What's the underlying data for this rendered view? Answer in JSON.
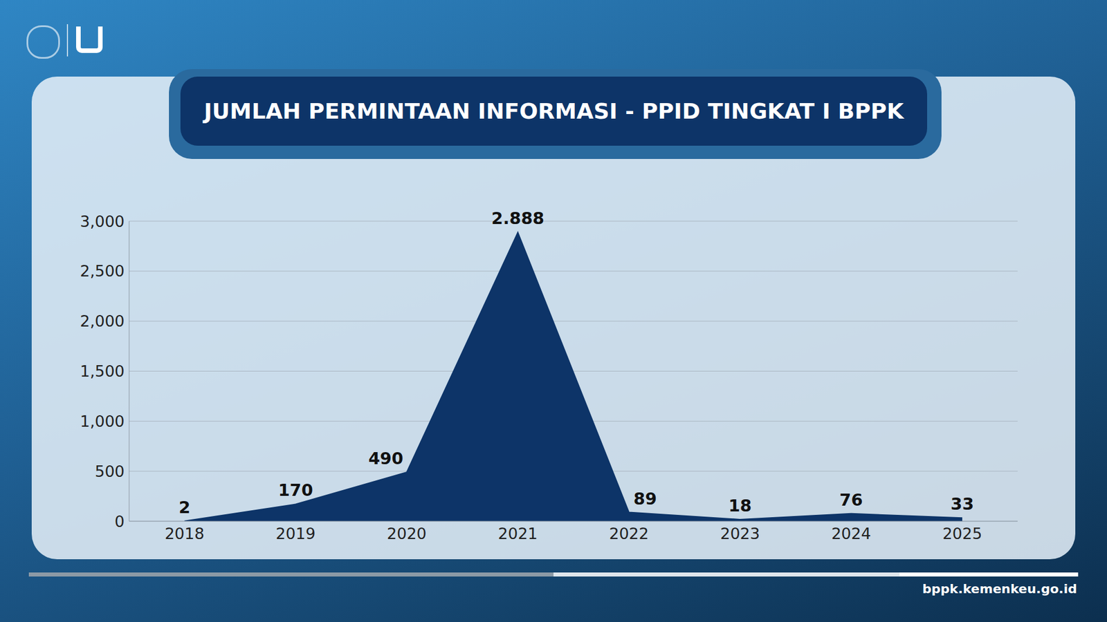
{
  "chart_data": {
    "type": "area",
    "title": "JUMLAH PERMINTAAN INFORMASI - PPID TINGKAT I BPPK",
    "categories": [
      "2018",
      "2019",
      "2020",
      "2021",
      "2022",
      "2023",
      "2024",
      "2025"
    ],
    "values": [
      2,
      170,
      490,
      2888,
      89,
      18,
      76,
      33
    ],
    "value_labels": [
      "2",
      "170",
      "490",
      "2.888",
      "89",
      "18",
      "76",
      "33"
    ],
    "color": "#0d3468",
    "ylim": [
      0,
      3000
    ],
    "yticks": [
      0,
      500,
      {
        "value": 1000,
        "label": "1,000"
      },
      {
        "value": 1500,
        "label": "1,500"
      },
      {
        "value": 2000,
        "label": "2,000"
      },
      {
        "value": 2500,
        "label": "2,500"
      },
      {
        "value": 3000,
        "label": "3,000"
      }
    ],
    "grid": true,
    "data_labels": true
  },
  "footer": "bppk.kemenkeu.go.id"
}
